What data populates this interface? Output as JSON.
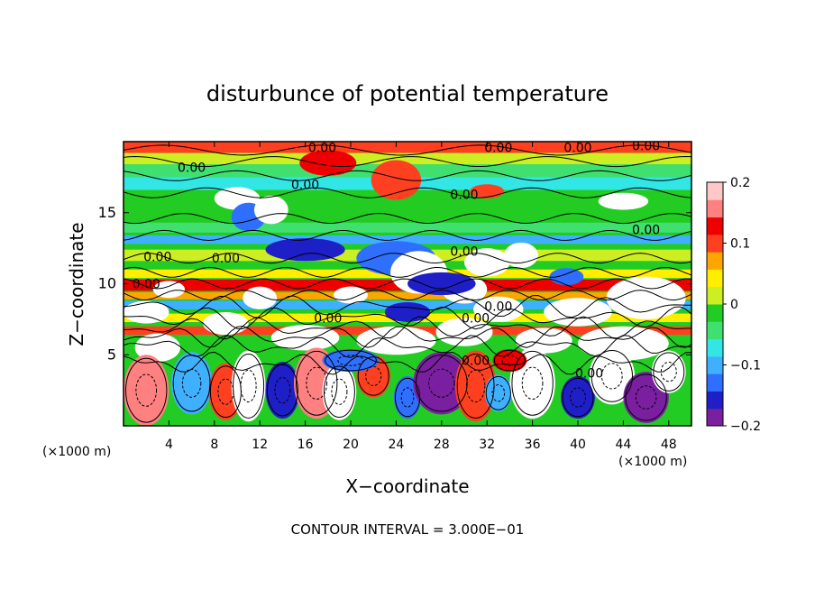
{
  "chart_data": {
    "type": "heatmap",
    "title": "disturbunce of potential temperature",
    "xlabel": "X−coordinate",
    "ylabel": "Z−coordinate",
    "x_unit_left": "(×1000 m)",
    "x_unit_right": "(×1000 m)",
    "xlim": [
      0,
      50
    ],
    "ylim": [
      0,
      20
    ],
    "x_ticks": [
      "4",
      "8",
      "12",
      "16",
      "20",
      "24",
      "28",
      "32",
      "36",
      "40",
      "44",
      "48"
    ],
    "y_ticks": [
      "5",
      "10",
      "15"
    ],
    "colorbar": {
      "range": [
        -0.2,
        0.2
      ],
      "ticks": [
        "0.2",
        "0.1",
        "0",
        "−0.1",
        "−0.2"
      ],
      "colors": [
        "#7a1fa0",
        "#1f1fc8",
        "#2f6fff",
        "#3fb0ff",
        "#33e6e6",
        "#40e070",
        "#22cc22",
        "#ccee22",
        "#ffee00",
        "#ffa500",
        "#ff4020",
        "#ee0000",
        "#ff8080",
        "#ffc8c8"
      ]
    },
    "contour_interval": "CONTOUR INTERVAL = 3.000E−01",
    "contour_labels": [
      "0.00",
      "0.00",
      "0.00",
      "0.00",
      "0.00",
      "0.00",
      "0.00",
      "0.00",
      "0.00",
      "0.00",
      "0.00",
      "0.00",
      "0.00",
      "0.00",
      "0.00",
      "0.00",
      "0.00"
    ]
  }
}
